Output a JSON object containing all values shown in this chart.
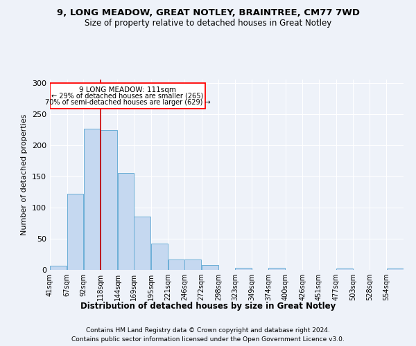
{
  "title1": "9, LONG MEADOW, GREAT NOTLEY, BRAINTREE, CM77 7WD",
  "title2": "Size of property relative to detached houses in Great Notley",
  "xlabel": "Distribution of detached houses by size in Great Notley",
  "ylabel": "Number of detached properties",
  "bin_labels": [
    "41sqm",
    "67sqm",
    "92sqm",
    "118sqm",
    "144sqm",
    "169sqm",
    "195sqm",
    "221sqm",
    "246sqm",
    "272sqm",
    "298sqm",
    "323sqm",
    "349sqm",
    "374sqm",
    "400sqm",
    "426sqm",
    "451sqm",
    "477sqm",
    "503sqm",
    "528sqm",
    "554sqm"
  ],
  "bar_heights": [
    7,
    122,
    226,
    224,
    155,
    85,
    42,
    17,
    17,
    8,
    0,
    3,
    0,
    3,
    0,
    0,
    0,
    2,
    0,
    0,
    2
  ],
  "bar_color": "#c5d8f0",
  "bar_edgecolor": "#6baed6",
  "vline_color": "#cc0000",
  "ylim": [
    0,
    300
  ],
  "yticks": [
    0,
    50,
    100,
    150,
    200,
    250,
    300
  ],
  "background_color": "#eef2f9",
  "grid_color": "#ffffff",
  "property_label": "9 LONG MEADOW: 111sqm",
  "annotation_line1": "← 29% of detached houses are smaller (265)",
  "annotation_line2": "70% of semi-detached houses are larger (629) →",
  "footer_line1": "Contains HM Land Registry data © Crown copyright and database right 2024.",
  "footer_line2": "Contains public sector information licensed under the Open Government Licence v3.0.",
  "bin_edge_vals": [
    41,
    67,
    92,
    118,
    144,
    169,
    195,
    221,
    246,
    272,
    298,
    323,
    349,
    374,
    400,
    426,
    451,
    477,
    503,
    528,
    554,
    580
  ],
  "vline_x": 118
}
